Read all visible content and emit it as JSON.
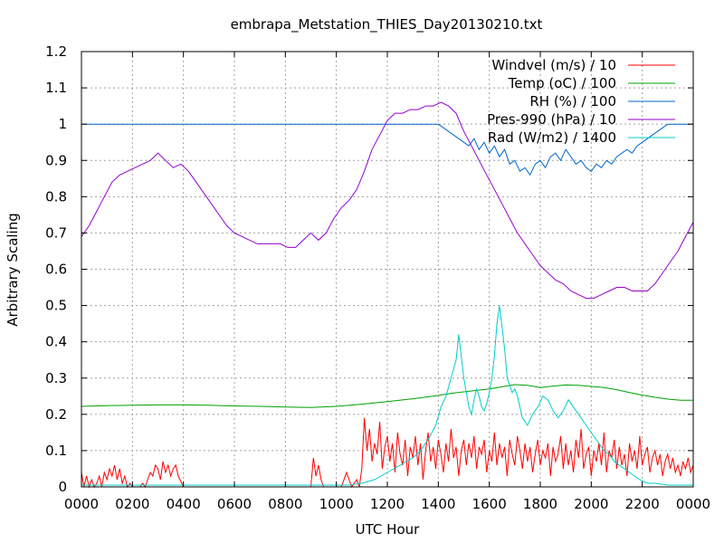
{
  "chart_data": {
    "type": "line",
    "title": "embrapa_Metstation_THIES_Day20130210.txt",
    "xlabel": "UTC Hour",
    "ylabel": "Arbitrary Scaling",
    "xlim": [
      0,
      24
    ],
    "ylim": [
      0,
      1.2
    ],
    "grid": true,
    "legend_placement": "top-right",
    "x_tick_values": [
      0,
      2,
      4,
      6,
      8,
      10,
      12,
      14,
      16,
      18,
      20,
      22,
      24
    ],
    "x_tick_labels": [
      "0000",
      "0200",
      "0400",
      "0600",
      "0800",
      "1000",
      "1200",
      "1400",
      "1600",
      "1800",
      "2000",
      "2200",
      "0000"
    ],
    "y_tick_values": [
      0,
      0.1,
      0.2,
      0.3,
      0.4,
      0.5,
      0.6,
      0.7,
      0.8,
      0.9,
      1,
      1.1,
      1.2
    ],
    "y_tick_labels": [
      "0",
      "0.1",
      "0.2",
      "0.3",
      "0.4",
      "0.5",
      "0.6",
      "0.7",
      "0.8",
      "0.9",
      "1",
      "1.1",
      "1.2"
    ],
    "series": [
      {
        "name": "Windvel (m/s) / 10",
        "color": "#ff0000",
        "x": [
          0,
          0.1,
          0.2,
          0.3,
          0.4,
          0.5,
          0.6,
          0.7,
          0.8,
          0.9,
          1.0,
          1.1,
          1.2,
          1.3,
          1.4,
          1.5,
          1.6,
          1.7,
          1.8,
          1.9,
          2.0,
          2.1,
          2.2,
          2.3,
          2.4,
          2.5,
          2.6,
          2.7,
          2.8,
          2.9,
          3.0,
          3.1,
          3.2,
          3.3,
          3.4,
          3.5,
          3.6,
          3.7,
          3.8,
          4.0,
          5.0,
          6.0,
          7.0,
          8.0,
          9.0,
          9.1,
          9.2,
          9.3,
          9.4,
          9.5,
          9.6,
          9.7,
          9.8,
          9.9,
          10.0,
          10.2,
          10.4,
          10.6,
          10.8,
          10.9,
          11.0,
          11.1,
          11.2,
          11.3,
          11.4,
          11.5,
          11.6,
          11.7,
          11.8,
          11.9,
          12.0,
          12.1,
          12.2,
          12.3,
          12.4,
          12.5,
          12.6,
          12.7,
          12.8,
          12.9,
          13.0,
          13.1,
          13.2,
          13.3,
          13.4,
          13.5,
          13.6,
          13.7,
          13.8,
          13.9,
          14.0,
          14.1,
          14.2,
          14.3,
          14.4,
          14.5,
          14.6,
          14.7,
          14.8,
          14.9,
          15.0,
          15.1,
          15.2,
          15.3,
          15.4,
          15.5,
          15.6,
          15.7,
          15.8,
          15.9,
          16.0,
          16.1,
          16.2,
          16.3,
          16.4,
          16.5,
          16.6,
          16.7,
          16.8,
          16.9,
          17.0,
          17.1,
          17.2,
          17.3,
          17.4,
          17.5,
          17.6,
          17.7,
          17.8,
          17.9,
          18.0,
          18.1,
          18.2,
          18.3,
          18.4,
          18.5,
          18.6,
          18.7,
          18.8,
          18.9,
          19.0,
          19.1,
          19.2,
          19.3,
          19.4,
          19.5,
          19.6,
          19.7,
          19.8,
          19.9,
          20.0,
          20.1,
          20.2,
          20.3,
          20.4,
          20.5,
          20.6,
          20.7,
          20.8,
          20.9,
          21.0,
          21.1,
          21.2,
          21.3,
          21.4,
          21.5,
          21.6,
          21.7,
          21.8,
          21.9,
          22.0,
          22.1,
          22.2,
          22.3,
          22.4,
          22.5,
          22.6,
          22.7,
          22.8,
          22.9,
          23.0,
          23.1,
          23.2,
          23.3,
          23.4,
          23.5,
          23.6,
          23.7,
          23.8,
          23.9,
          24.0
        ],
        "y": [
          0.04,
          0.0,
          0.03,
          0.0,
          0.02,
          0.0,
          0.01,
          0.03,
          0.0,
          0.04,
          0.02,
          0.05,
          0.03,
          0.06,
          0.02,
          0.05,
          0.01,
          0.03,
          0.0,
          0.01,
          0.0,
          0.0,
          0.0,
          0.0,
          0.01,
          0.0,
          0.02,
          0.04,
          0.03,
          0.06,
          0.05,
          0.02,
          0.07,
          0.04,
          0.06,
          0.03,
          0.05,
          0.06,
          0.03,
          0.0,
          0.0,
          0.0,
          0.0,
          0.0,
          0.0,
          0.08,
          0.03,
          0.06,
          0.02,
          0.0,
          0.0,
          0.0,
          0.0,
          0.0,
          0.0,
          0.0,
          0.04,
          0.0,
          0.02,
          0.0,
          0.05,
          0.19,
          0.1,
          0.16,
          0.07,
          0.12,
          0.09,
          0.18,
          0.05,
          0.11,
          0.14,
          0.07,
          0.12,
          0.04,
          0.15,
          0.09,
          0.06,
          0.13,
          0.03,
          0.11,
          0.08,
          0.14,
          0.06,
          0.12,
          0.02,
          0.1,
          0.15,
          0.07,
          0.11,
          0.05,
          0.13,
          0.09,
          0.04,
          0.12,
          0.07,
          0.16,
          0.08,
          0.11,
          0.03,
          0.1,
          0.13,
          0.06,
          0.12,
          0.08,
          0.14,
          0.05,
          0.11,
          0.09,
          0.13,
          0.04,
          0.1,
          0.07,
          0.15,
          0.06,
          0.12,
          0.08,
          0.11,
          0.03,
          0.13,
          0.09,
          0.06,
          0.14,
          0.1,
          0.05,
          0.12,
          0.07,
          0.11,
          0.04,
          0.09,
          0.13,
          0.06,
          0.1,
          0.08,
          0.12,
          0.03,
          0.11,
          0.07,
          0.09,
          0.14,
          0.05,
          0.12,
          0.06,
          0.1,
          0.04,
          0.13,
          0.08,
          0.16,
          0.05,
          0.09,
          0.11,
          0.03,
          0.1,
          0.07,
          0.12,
          0.06,
          0.15,
          0.04,
          0.1,
          0.08,
          0.13,
          0.05,
          0.11,
          0.06,
          0.09,
          0.03,
          0.12,
          0.07,
          0.1,
          0.05,
          0.14,
          0.06,
          0.09,
          0.11,
          0.04,
          0.08,
          0.1,
          0.06,
          0.09,
          0.03,
          0.07,
          0.09,
          0.05,
          0.08,
          0.04,
          0.06,
          0.03,
          0.07,
          0.05,
          0.08,
          0.04,
          0.06
        ]
      },
      {
        "name": "Temp (oC) / 100",
        "color": "#00a000",
        "x": [
          0,
          1,
          2,
          3,
          4,
          5,
          6,
          7,
          8,
          9,
          10,
          11,
          12,
          13,
          14,
          14.5,
          15,
          15.5,
          16,
          16.5,
          17,
          17.5,
          18,
          18.5,
          19,
          19.5,
          20,
          20.5,
          21,
          21.5,
          22,
          22.5,
          23,
          23.5,
          24
        ],
        "y": [
          0.222,
          0.224,
          0.225,
          0.226,
          0.226,
          0.225,
          0.223,
          0.222,
          0.22,
          0.219,
          0.222,
          0.228,
          0.235,
          0.243,
          0.252,
          0.258,
          0.262,
          0.266,
          0.27,
          0.276,
          0.282,
          0.28,
          0.274,
          0.278,
          0.281,
          0.28,
          0.277,
          0.274,
          0.268,
          0.26,
          0.253,
          0.247,
          0.242,
          0.239,
          0.239
        ]
      },
      {
        "name": "RH (%) / 100",
        "color": "#0066cc",
        "x": [
          0,
          12,
          14,
          14.2,
          14.4,
          14.6,
          14.8,
          15.0,
          15.2,
          15.4,
          15.6,
          15.8,
          16.0,
          16.2,
          16.4,
          16.6,
          16.8,
          17.0,
          17.2,
          17.4,
          17.6,
          17.8,
          18.0,
          18.2,
          18.4,
          18.6,
          18.8,
          19.0,
          19.2,
          19.4,
          19.6,
          19.8,
          20.0,
          20.2,
          20.4,
          20.6,
          20.8,
          21.0,
          21.2,
          21.4,
          21.6,
          21.8,
          22.0,
          22.2,
          22.4,
          22.6,
          22.8,
          23.0,
          24
        ],
        "y": [
          1.0,
          1.0,
          1.0,
          0.99,
          0.98,
          0.97,
          0.96,
          0.95,
          0.94,
          0.96,
          0.93,
          0.95,
          0.92,
          0.94,
          0.91,
          0.93,
          0.89,
          0.9,
          0.87,
          0.88,
          0.86,
          0.89,
          0.9,
          0.88,
          0.91,
          0.92,
          0.9,
          0.93,
          0.91,
          0.89,
          0.9,
          0.88,
          0.87,
          0.89,
          0.88,
          0.9,
          0.89,
          0.91,
          0.92,
          0.93,
          0.92,
          0.94,
          0.95,
          0.96,
          0.97,
          0.98,
          0.99,
          1.0,
          1.0
        ]
      },
      {
        "name": "Pres-990 (hPa) / 10",
        "color": "#9400d3",
        "x": [
          0,
          0.3,
          0.6,
          0.9,
          1.2,
          1.5,
          1.8,
          2.1,
          2.4,
          2.7,
          3.0,
          3.3,
          3.6,
          3.9,
          4.2,
          4.5,
          4.8,
          5.1,
          5.4,
          5.7,
          6.0,
          6.3,
          6.6,
          6.9,
          7.2,
          7.5,
          7.8,
          8.1,
          8.4,
          8.7,
          9.0,
          9.3,
          9.6,
          9.9,
          10.2,
          10.5,
          10.8,
          11.1,
          11.4,
          11.7,
          12.0,
          12.3,
          12.6,
          12.9,
          13.2,
          13.5,
          13.8,
          14.1,
          14.4,
          14.7,
          15.0,
          15.3,
          15.6,
          15.9,
          16.2,
          16.5,
          16.8,
          17.1,
          17.4,
          17.7,
          18.0,
          18.3,
          18.6,
          18.9,
          19.2,
          19.5,
          19.8,
          20.1,
          20.4,
          20.7,
          21.0,
          21.3,
          21.6,
          21.9,
          22.2,
          22.5,
          22.8,
          23.1,
          23.4,
          23.7,
          24.0
        ],
        "y": [
          0.69,
          0.72,
          0.76,
          0.8,
          0.84,
          0.86,
          0.87,
          0.88,
          0.89,
          0.9,
          0.92,
          0.9,
          0.88,
          0.89,
          0.87,
          0.84,
          0.81,
          0.78,
          0.75,
          0.72,
          0.7,
          0.69,
          0.68,
          0.67,
          0.67,
          0.67,
          0.67,
          0.66,
          0.66,
          0.68,
          0.7,
          0.68,
          0.7,
          0.74,
          0.77,
          0.79,
          0.82,
          0.87,
          0.93,
          0.97,
          1.01,
          1.03,
          1.03,
          1.04,
          1.04,
          1.05,
          1.05,
          1.06,
          1.05,
          1.03,
          0.98,
          0.94,
          0.9,
          0.86,
          0.82,
          0.78,
          0.74,
          0.7,
          0.67,
          0.64,
          0.61,
          0.59,
          0.57,
          0.56,
          0.54,
          0.53,
          0.52,
          0.52,
          0.53,
          0.54,
          0.55,
          0.55,
          0.54,
          0.54,
          0.54,
          0.56,
          0.59,
          0.62,
          0.65,
          0.69,
          0.73
        ]
      },
      {
        "name": "Rad (W/m2) / 1400",
        "color": "#00cccc",
        "x": [
          0,
          10.5,
          11.0,
          11.5,
          12.0,
          12.5,
          13.0,
          13.3,
          13.6,
          13.9,
          14.1,
          14.3,
          14.5,
          14.7,
          14.8,
          14.9,
          15.0,
          15.1,
          15.2,
          15.3,
          15.4,
          15.5,
          15.6,
          15.7,
          15.8,
          15.9,
          16.0,
          16.1,
          16.2,
          16.3,
          16.4,
          16.5,
          16.6,
          16.7,
          16.8,
          16.9,
          17.0,
          17.1,
          17.2,
          17.3,
          17.5,
          17.7,
          17.9,
          18.1,
          18.3,
          18.5,
          18.7,
          18.9,
          19.1,
          19.3,
          19.5,
          19.7,
          19.9,
          20.1,
          20.3,
          20.5,
          20.7,
          20.9,
          21.1,
          21.3,
          21.5,
          21.7,
          21.9,
          22.2,
          22.5,
          23.0,
          24.0
        ],
        "y": [
          0.005,
          0.005,
          0.01,
          0.02,
          0.04,
          0.06,
          0.08,
          0.1,
          0.13,
          0.17,
          0.22,
          0.25,
          0.3,
          0.35,
          0.42,
          0.36,
          0.3,
          0.26,
          0.22,
          0.2,
          0.24,
          0.27,
          0.25,
          0.22,
          0.21,
          0.23,
          0.26,
          0.3,
          0.36,
          0.45,
          0.5,
          0.44,
          0.38,
          0.3,
          0.28,
          0.26,
          0.27,
          0.25,
          0.22,
          0.19,
          0.17,
          0.2,
          0.22,
          0.25,
          0.24,
          0.21,
          0.19,
          0.21,
          0.24,
          0.22,
          0.2,
          0.18,
          0.16,
          0.14,
          0.12,
          0.1,
          0.09,
          0.07,
          0.06,
          0.05,
          0.04,
          0.03,
          0.02,
          0.01,
          0.01,
          0.005,
          0.005
        ]
      }
    ]
  }
}
